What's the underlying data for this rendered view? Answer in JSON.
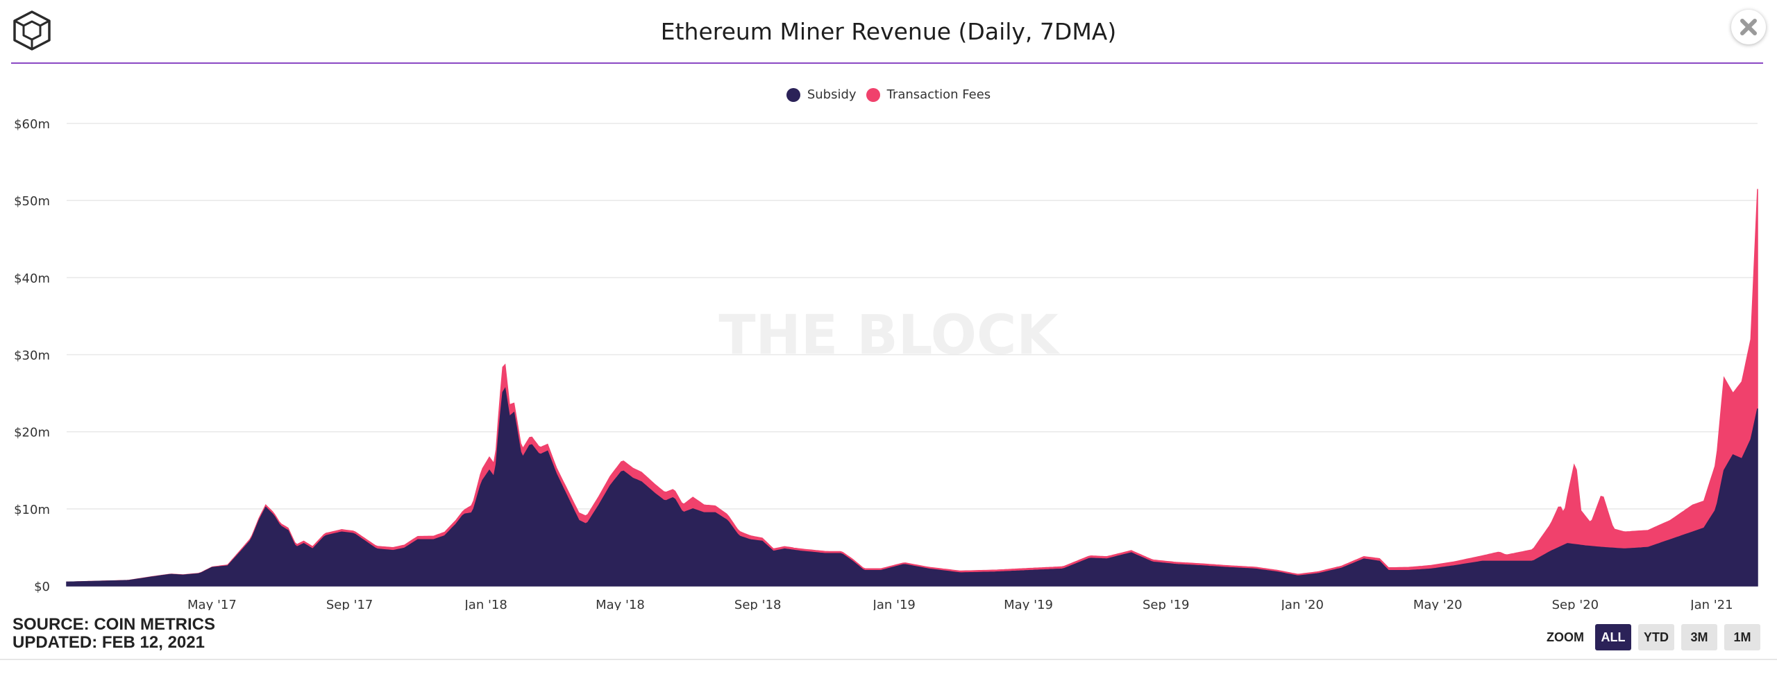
{
  "header": {
    "title": "Ethereum Miner Revenue (Daily, 7DMA)"
  },
  "logo": {
    "icon": "the-block-cube-icon"
  },
  "close": {
    "icon": "close-icon"
  },
  "watermark": "THE BLOCK",
  "footer": {
    "source": "SOURCE: COIN METRICS",
    "updated": "UPDATED: FEB 12, 2021"
  },
  "zoom": {
    "label": "ZOOM",
    "buttons": [
      "ALL",
      "YTD",
      "3M",
      "1M"
    ],
    "active": "ALL"
  },
  "colors": {
    "subsidy": "#2b2258",
    "fees": "#f0416c",
    "accent": "#8a48c4"
  },
  "chart_data": {
    "type": "area",
    "stacked": true,
    "x_type": "datetime",
    "x_range": [
      "2016-12-22",
      "2021-02-11"
    ],
    "ylim": [
      0,
      60
    ],
    "y_ticks": [
      "$0",
      "$10m",
      "$20m",
      "$30m",
      "$40m",
      "$50m",
      "$60m"
    ],
    "y_tick_values": [
      0,
      10,
      20,
      30,
      40,
      50,
      60
    ],
    "x_ticks": [
      "May '17",
      "Sep '17",
      "Jan '18",
      "May '18",
      "Sep '18",
      "Jan '19",
      "May '19",
      "Sep '19",
      "Jan '20",
      "May '20",
      "Sep '20",
      "Jan '21"
    ],
    "x_tick_dates": [
      "2017-05-01",
      "2017-09-01",
      "2018-01-01",
      "2018-05-01",
      "2018-09-01",
      "2019-01-01",
      "2019-05-01",
      "2019-09-01",
      "2020-01-01",
      "2020-05-01",
      "2020-09-01",
      "2021-01-01"
    ],
    "grid": true,
    "legend": "top-center",
    "series": [
      {
        "name": "Subsidy",
        "points": [
          [
            "2016-12-22",
            0.5
          ],
          [
            "2017-02-15",
            0.7
          ],
          [
            "2017-03-10",
            1.2
          ],
          [
            "2017-03-25",
            1.5
          ],
          [
            "2017-04-05",
            1.4
          ],
          [
            "2017-04-20",
            1.6
          ],
          [
            "2017-05-01",
            2.4
          ],
          [
            "2017-05-15",
            2.6
          ],
          [
            "2017-05-25",
            4.2
          ],
          [
            "2017-06-05",
            6.0
          ],
          [
            "2017-06-12",
            8.5
          ],
          [
            "2017-06-18",
            10.2
          ],
          [
            "2017-06-25",
            9.2
          ],
          [
            "2017-07-01",
            7.8
          ],
          [
            "2017-07-08",
            7.2
          ],
          [
            "2017-07-15",
            5.0
          ],
          [
            "2017-07-22",
            5.5
          ],
          [
            "2017-07-30",
            4.8
          ],
          [
            "2017-08-10",
            6.5
          ],
          [
            "2017-08-25",
            7.0
          ],
          [
            "2017-09-05",
            6.8
          ],
          [
            "2017-09-15",
            5.8
          ],
          [
            "2017-09-25",
            4.8
          ],
          [
            "2017-10-10",
            4.6
          ],
          [
            "2017-10-20",
            4.9
          ],
          [
            "2017-11-01",
            6.0
          ],
          [
            "2017-11-15",
            6.0
          ],
          [
            "2017-11-25",
            6.5
          ],
          [
            "2017-12-05",
            8.0
          ],
          [
            "2017-12-12",
            9.3
          ],
          [
            "2017-12-20",
            9.5
          ],
          [
            "2017-12-28",
            13.5
          ],
          [
            "2018-01-04",
            15.0
          ],
          [
            "2018-01-09",
            14.0
          ],
          [
            "2018-01-13",
            21.0
          ],
          [
            "2018-01-17",
            26.5
          ],
          [
            "2018-01-22",
            22.0
          ],
          [
            "2018-01-26",
            22.5
          ],
          [
            "2018-02-02",
            16.5
          ],
          [
            "2018-02-10",
            18.5
          ],
          [
            "2018-02-18",
            17.0
          ],
          [
            "2018-02-25",
            17.5
          ],
          [
            "2018-03-05",
            14.5
          ],
          [
            "2018-03-15",
            11.5
          ],
          [
            "2018-03-25",
            8.5
          ],
          [
            "2018-04-01",
            8.0
          ],
          [
            "2018-04-12",
            10.5
          ],
          [
            "2018-04-22",
            13.0
          ],
          [
            "2018-05-03",
            15.0
          ],
          [
            "2018-05-12",
            14.0
          ],
          [
            "2018-05-20",
            13.5
          ],
          [
            "2018-06-01",
            12.0
          ],
          [
            "2018-06-10",
            11.0
          ],
          [
            "2018-06-18",
            11.5
          ],
          [
            "2018-06-26",
            9.5
          ],
          [
            "2018-07-05",
            10.0
          ],
          [
            "2018-07-15",
            9.5
          ],
          [
            "2018-07-25",
            9.5
          ],
          [
            "2018-08-05",
            8.5
          ],
          [
            "2018-08-15",
            6.5
          ],
          [
            "2018-08-25",
            6.0
          ],
          [
            "2018-09-05",
            5.8
          ],
          [
            "2018-09-15",
            4.5
          ],
          [
            "2018-09-25",
            4.8
          ],
          [
            "2018-10-10",
            4.5
          ],
          [
            "2018-11-01",
            4.2
          ],
          [
            "2018-11-15",
            4.2
          ],
          [
            "2018-11-25",
            3.2
          ],
          [
            "2018-12-05",
            2.0
          ],
          [
            "2018-12-20",
            2.0
          ],
          [
            "2019-01-10",
            2.8
          ],
          [
            "2019-02-01",
            2.2
          ],
          [
            "2019-03-01",
            1.7
          ],
          [
            "2019-04-01",
            1.8
          ],
          [
            "2019-05-01",
            2.0
          ],
          [
            "2019-06-01",
            2.2
          ],
          [
            "2019-06-25",
            3.6
          ],
          [
            "2019-07-10",
            3.5
          ],
          [
            "2019-08-01",
            4.3
          ],
          [
            "2019-08-20",
            3.1
          ],
          [
            "2019-09-10",
            2.8
          ],
          [
            "2019-10-05",
            2.6
          ],
          [
            "2019-10-25",
            2.4
          ],
          [
            "2019-11-20",
            2.2
          ],
          [
            "2019-12-10",
            1.8
          ],
          [
            "2019-12-28",
            1.3
          ],
          [
            "2020-01-15",
            1.6
          ],
          [
            "2020-02-05",
            2.3
          ],
          [
            "2020-02-25",
            3.5
          ],
          [
            "2020-03-10",
            3.2
          ],
          [
            "2020-03-18",
            2.0
          ],
          [
            "2020-04-05",
            2.0
          ],
          [
            "2020-04-25",
            2.2
          ],
          [
            "2020-05-15",
            2.6
          ],
          [
            "2020-06-10",
            3.2
          ],
          [
            "2020-07-01",
            3.2
          ],
          [
            "2020-07-25",
            3.2
          ],
          [
            "2020-08-10",
            4.5
          ],
          [
            "2020-08-25",
            5.5
          ],
          [
            "2020-09-10",
            5.2
          ],
          [
            "2020-09-25",
            5.0
          ],
          [
            "2020-10-15",
            4.8
          ],
          [
            "2020-11-05",
            5.0
          ],
          [
            "2020-11-25",
            6.0
          ],
          [
            "2020-12-15",
            7.0
          ],
          [
            "2020-12-25",
            7.5
          ],
          [
            "2021-01-05",
            10.0
          ],
          [
            "2021-01-12",
            15.0
          ],
          [
            "2021-01-20",
            17.0
          ],
          [
            "2021-01-28",
            16.5
          ],
          [
            "2021-02-05",
            19.0
          ],
          [
            "2021-02-11",
            23.0
          ]
        ]
      },
      {
        "name": "Transaction Fees",
        "points": [
          [
            "2016-12-22",
            0.0
          ],
          [
            "2017-05-01",
            0.05
          ],
          [
            "2017-06-18",
            0.3
          ],
          [
            "2017-09-05",
            0.3
          ],
          [
            "2017-12-12",
            0.5
          ],
          [
            "2017-12-28",
            1.5
          ],
          [
            "2018-01-04",
            1.7
          ],
          [
            "2018-01-09",
            1.7
          ],
          [
            "2018-01-13",
            2.5
          ],
          [
            "2018-01-17",
            3.5
          ],
          [
            "2018-01-22",
            1.5
          ],
          [
            "2018-01-26",
            1.2
          ],
          [
            "2018-02-10",
            1.0
          ],
          [
            "2018-03-05",
            0.8
          ],
          [
            "2018-05-03",
            1.3
          ],
          [
            "2018-05-12",
            1.3
          ],
          [
            "2018-06-26",
            1.0
          ],
          [
            "2018-07-05",
            1.5
          ],
          [
            "2018-07-15",
            1.0
          ],
          [
            "2018-08-15",
            0.6
          ],
          [
            "2018-09-15",
            0.3
          ],
          [
            "2019-01-10",
            0.2
          ],
          [
            "2019-06-25",
            0.3
          ],
          [
            "2019-12-28",
            0.2
          ],
          [
            "2020-02-25",
            0.3
          ],
          [
            "2020-05-15",
            0.5
          ],
          [
            "2020-06-10",
            0.7
          ],
          [
            "2020-06-25",
            1.2
          ],
          [
            "2020-07-01",
            0.8
          ],
          [
            "2020-07-25",
            1.5
          ],
          [
            "2020-08-10",
            3.5
          ],
          [
            "2020-08-18",
            5.5
          ],
          [
            "2020-08-22",
            4.0
          ],
          [
            "2020-09-01",
            11.0
          ],
          [
            "2020-09-06",
            4.5
          ],
          [
            "2020-09-15",
            3.0
          ],
          [
            "2020-09-25",
            7.0
          ],
          [
            "2020-10-05",
            2.5
          ],
          [
            "2020-10-15",
            2.2
          ],
          [
            "2020-11-05",
            2.2
          ],
          [
            "2020-11-25",
            2.5
          ],
          [
            "2020-12-15",
            3.5
          ],
          [
            "2020-12-25",
            3.5
          ],
          [
            "2021-01-05",
            6.0
          ],
          [
            "2021-01-12",
            12.0
          ],
          [
            "2021-01-20",
            8.0
          ],
          [
            "2021-01-28",
            10.0
          ],
          [
            "2021-02-05",
            13.0
          ],
          [
            "2021-02-11",
            28.5
          ]
        ]
      }
    ]
  }
}
